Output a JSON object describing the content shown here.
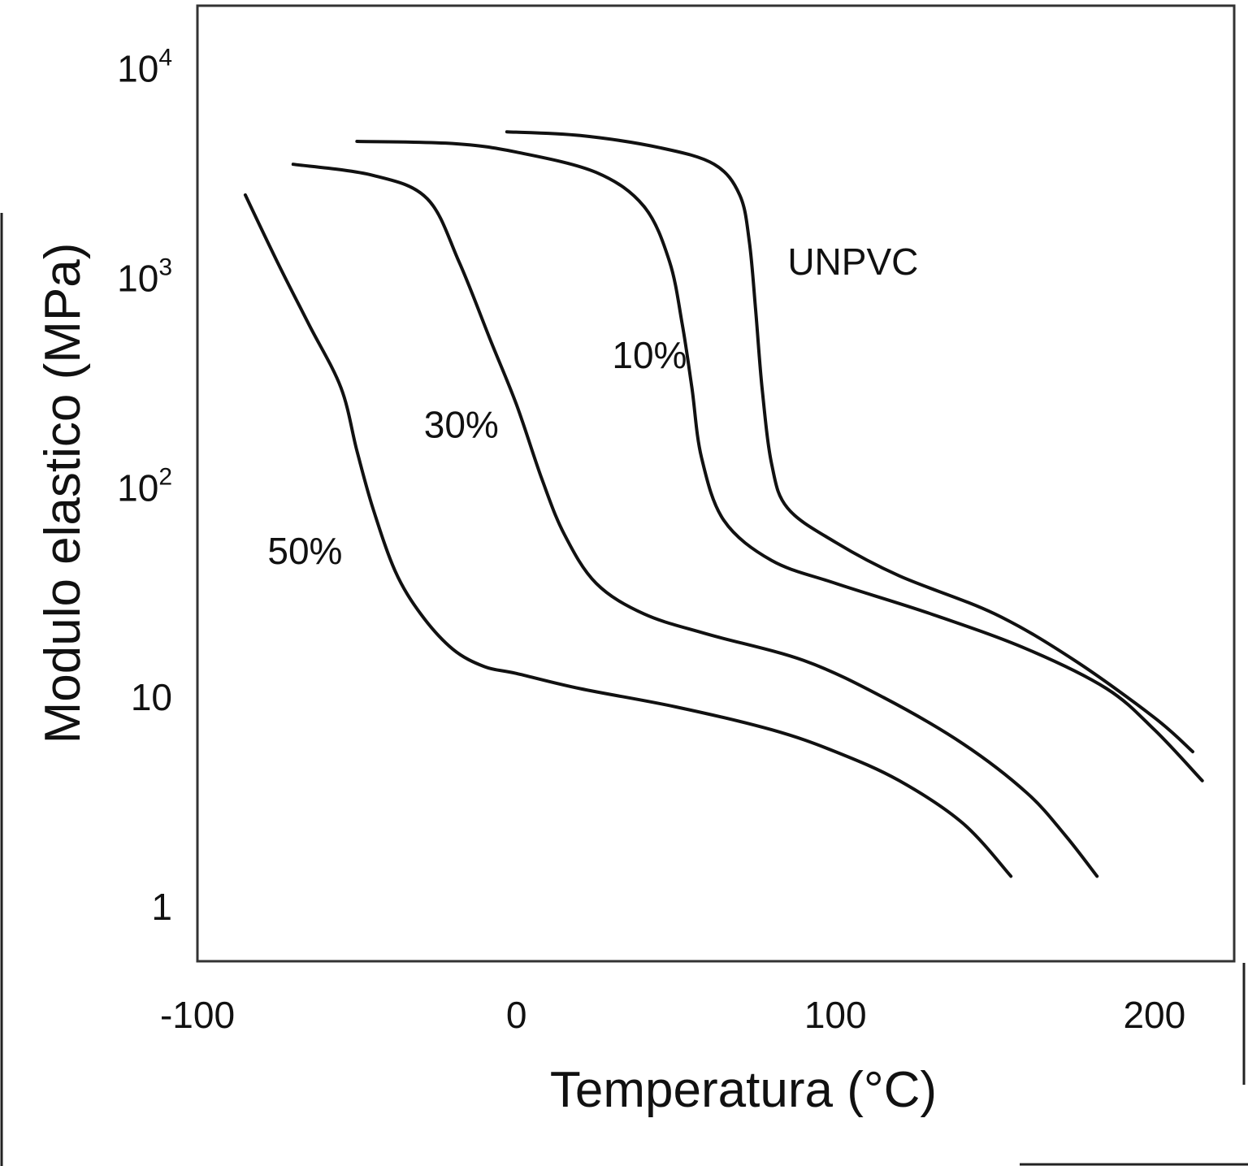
{
  "chart_data": {
    "type": "line",
    "title": "",
    "xlabel": "Temperatura (°C)",
    "ylabel": "Modulo elastico (MPa)",
    "yscale": "log",
    "xlim": [
      -100,
      225
    ],
    "ylim": [
      0.55,
      20000
    ],
    "grid": false,
    "x_ticks": [
      {
        "value": -100,
        "label": "-100"
      },
      {
        "value": 0,
        "label": "0"
      },
      {
        "value": 100,
        "label": "100"
      },
      {
        "value": 200,
        "label": "200"
      }
    ],
    "y_ticks": [
      {
        "value": 1,
        "base": "1",
        "exp": ""
      },
      {
        "value": 10,
        "base": "10",
        "exp": ""
      },
      {
        "value": 100,
        "base": "10",
        "exp": "2"
      },
      {
        "value": 1000,
        "base": "10",
        "exp": "3"
      },
      {
        "value": 10000,
        "base": "10",
        "exp": "4"
      }
    ],
    "series": [
      {
        "name": "UNPVC",
        "label_at": [
          85,
          1200
        ],
        "x": [
          -3,
          20,
          45,
          62,
          70,
          73,
          75,
          77,
          80,
          85,
          100,
          120,
          150,
          175,
          200,
          212
        ],
        "y": [
          5000,
          4800,
          4200,
          3500,
          2500,
          1500,
          700,
          300,
          130,
          80,
          55,
          38,
          25,
          15,
          8,
          5.5
        ]
      },
      {
        "name": "10%",
        "label_at": [
          30,
          430
        ],
        "x": [
          -50,
          -20,
          0,
          25,
          40,
          48,
          52,
          55,
          58,
          65,
          80,
          100,
          130,
          160,
          185,
          200,
          215
        ],
        "y": [
          4500,
          4400,
          4000,
          3200,
          2200,
          1200,
          600,
          300,
          140,
          70,
          45,
          35,
          25,
          17,
          11,
          7,
          4
        ]
      },
      {
        "name": "30%",
        "label_at": [
          -29,
          200
        ],
        "x": [
          -70,
          -45,
          -28,
          -18,
          -8,
          0,
          8,
          15,
          25,
          40,
          60,
          90,
          115,
          140,
          160,
          172,
          182
        ],
        "y": [
          3500,
          3100,
          2400,
          1200,
          500,
          250,
          110,
          60,
          35,
          25,
          20,
          15,
          10,
          6,
          3.5,
          2.2,
          1.4
        ]
      },
      {
        "name": "50%",
        "label_at": [
          -78,
          50
        ],
        "x": [
          -85,
          -75,
          -65,
          -55,
          -50,
          -45,
          -38,
          -30,
          -20,
          -10,
          0,
          20,
          50,
          80,
          100,
          120,
          140,
          155
        ],
        "y": [
          2500,
          1200,
          600,
          300,
          150,
          80,
          40,
          25,
          17,
          14,
          13,
          11,
          9,
          7,
          5.5,
          4,
          2.5,
          1.4
        ]
      }
    ]
  }
}
